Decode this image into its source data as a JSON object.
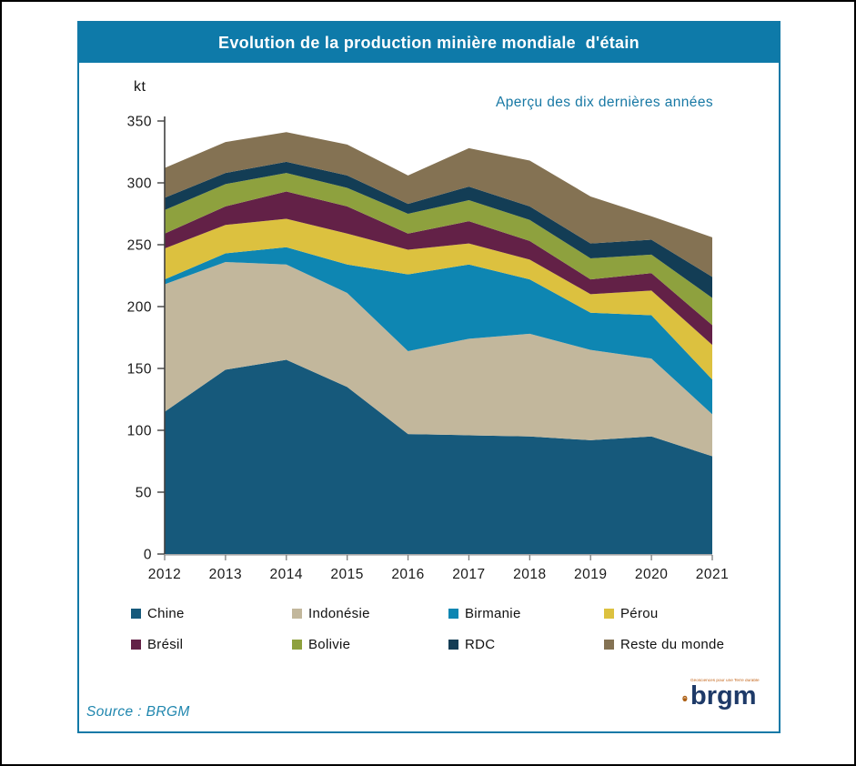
{
  "header": {
    "title": "Evolution de la production minière mondiale  d'étain",
    "subtitle": "Aperçu des dix dernières années"
  },
  "footer": {
    "source": "Source : BRGM"
  },
  "logo": {
    "text": "brgm",
    "tagline": "Géosciences pour une Terre durable"
  },
  "chart_data": {
    "type": "area",
    "stacked": true,
    "title": "Evolution de la production minière mondiale d'étain",
    "subtitle": "Aperçu des dix dernières années",
    "unit_label": "kt",
    "xlabel": "",
    "ylabel": "kt",
    "ylim": [
      0,
      350
    ],
    "y_ticks": [
      0,
      50,
      100,
      150,
      200,
      250,
      300,
      350
    ],
    "grid": false,
    "legend_position": "bottom",
    "categories": [
      "2012",
      "2013",
      "2014",
      "2015",
      "2016",
      "2017",
      "2018",
      "2019",
      "2020",
      "2021"
    ],
    "series": [
      {
        "name": "Chine",
        "color": "#16597B",
        "values": [
          115,
          149,
          157,
          135,
          97,
          96,
          95,
          92,
          95,
          79
        ]
      },
      {
        "name": "Indonésie",
        "color": "#C2B79C",
        "values": [
          103,
          87,
          77,
          76,
          67,
          78,
          83,
          73,
          63,
          34
        ]
      },
      {
        "name": "Birmanie",
        "color": "#0E86B2",
        "values": [
          4,
          7,
          14,
          23,
          62,
          60,
          44,
          30,
          35,
          28
        ]
      },
      {
        "name": "Pérou",
        "color": "#DCC13F",
        "values": [
          25,
          23,
          23,
          25,
          20,
          17,
          16,
          15,
          20,
          28
        ]
      },
      {
        "name": "Brésil",
        "color": "#632147",
        "values": [
          12,
          15,
          22,
          22,
          13,
          18,
          15,
          12,
          14,
          16
        ]
      },
      {
        "name": "Bolivie",
        "color": "#8EA13E",
        "values": [
          19,
          18,
          15,
          15,
          16,
          17,
          17,
          17,
          15,
          22
        ]
      },
      {
        "name": "RDC",
        "color": "#133D55",
        "values": [
          10,
          9,
          9,
          10,
          8,
          11,
          11,
          12,
          12,
          17
        ]
      },
      {
        "name": "Reste du monde",
        "color": "#847253",
        "values": [
          24,
          25,
          24,
          25,
          23,
          31,
          37,
          38,
          19,
          32
        ]
      }
    ],
    "totals": [
      312,
      333,
      341,
      331,
      306,
      328,
      318,
      289,
      273,
      256
    ]
  },
  "colors": {
    "frame_border": "#1279A7",
    "title_bar_bg": "#0E7AA9",
    "title_text": "#FFFFFF",
    "subtitle_text": "#1778A4",
    "source_text": "#1F86AE",
    "axis_line": "#404040",
    "x_axis_line": "#A6A6A6",
    "tick_label": "#1A1A1A",
    "logo_egg": "#AC5E12",
    "logo_text": "#1E3A68",
    "logo_tagline": "#C4661B"
  }
}
